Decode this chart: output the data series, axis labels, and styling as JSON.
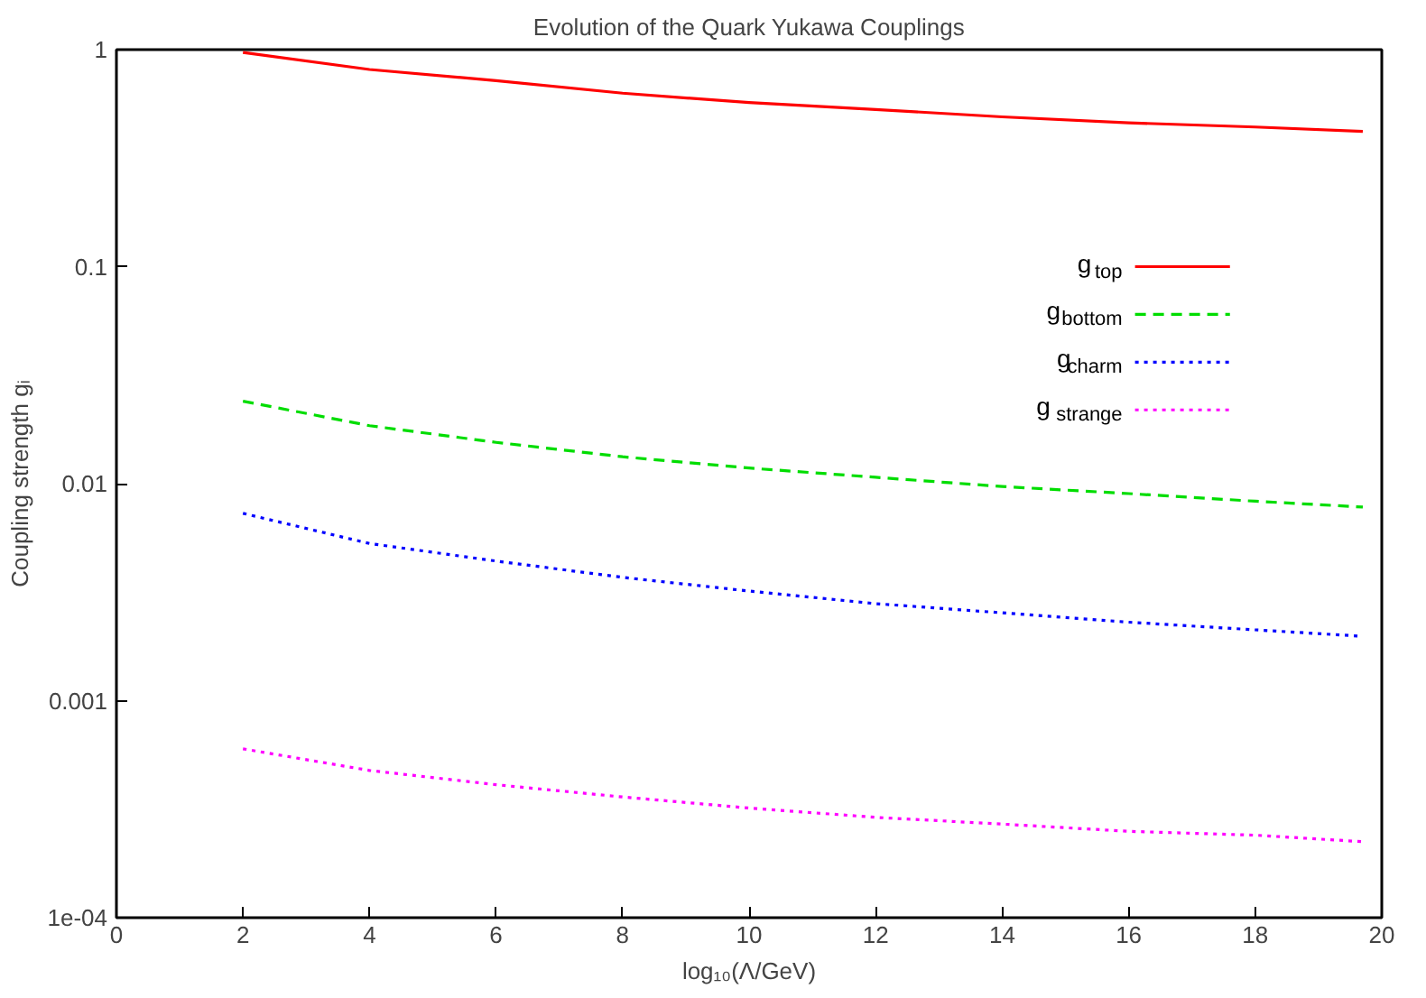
{
  "chart_data": {
    "type": "line",
    "title": "Evolution of the Quark Yukawa Couplings",
    "xlabel": "log₁₀(Λ/GeV)",
    "ylabel": "Coupling strength gᵢ",
    "x": [
      2,
      4,
      6,
      8,
      10,
      12,
      14,
      16,
      18,
      19.7
    ],
    "xlim": [
      0,
      20
    ],
    "xticks": [
      0,
      2,
      4,
      6,
      8,
      10,
      12,
      14,
      16,
      18,
      20
    ],
    "ylim": [
      0.0001,
      1
    ],
    "yticks": [
      {
        "value": 0.0001,
        "label": "1e-04"
      },
      0.001,
      0.01,
      0.1,
      1
    ],
    "log": "y",
    "grid": false,
    "legend": "right",
    "marker": "none",
    "series": [
      {
        "name": "g$_{top}$",
        "color": "#ff0000",
        "line_style": "solid",
        "values": [
          0.97,
          0.81,
          0.72,
          0.63,
          0.57,
          0.53,
          0.49,
          0.46,
          0.44,
          0.42
        ]
      },
      {
        "name": "g$_{bottom}$",
        "color": "#00dd00",
        "line_style": "dashed",
        "values": [
          0.024,
          0.0185,
          0.0155,
          0.0133,
          0.0118,
          0.0107,
          0.0097,
          0.009,
          0.0083,
          0.0078
        ]
      },
      {
        "name": "g$_{charm}$",
        "color": "#0000ff",
        "line_style": "dotted",
        "values": [
          0.0073,
          0.0053,
          0.0044,
          0.0037,
          0.0032,
          0.0028,
          0.00254,
          0.0023,
          0.00212,
          0.00198
        ]
      },
      {
        "name": "g$_{strange}$",
        "color": "#ff00ff",
        "line_style": "dotted",
        "values": [
          0.0006,
          0.000477,
          0.00041,
          0.00036,
          0.00032,
          0.00029,
          0.00027,
          0.00025,
          0.00024,
          0.000224
        ]
      }
    ]
  }
}
